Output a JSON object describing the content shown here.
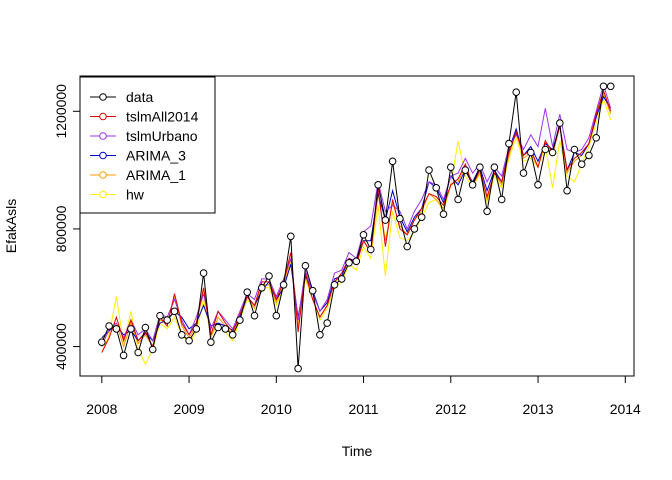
{
  "chart_data": {
    "type": "line",
    "title": "",
    "xlabel": "Time",
    "ylabel": "EfakAsls",
    "xlim": [
      2007.75,
      2014.1
    ],
    "ylim": [
      300000,
      1320000
    ],
    "x_ticks": [
      2008,
      2009,
      2010,
      2011,
      2012,
      2013,
      2014
    ],
    "x_tick_labels": [
      "2008",
      "2009",
      "2010",
      "2011",
      "2012",
      "2013",
      "2014"
    ],
    "y_ticks": [
      400000,
      800000,
      1200000
    ],
    "y_tick_labels": [
      "400000",
      "800000",
      "1200000"
    ],
    "grid": false,
    "legend_position": "top-left",
    "x_start": 2008,
    "x_step": 0.083333,
    "series": [
      {
        "name": "data",
        "color": "#000000",
        "marker": "circle",
        "values": [
          415000,
          470000,
          460000,
          370000,
          460000,
          380000,
          465000,
          390000,
          505000,
          490000,
          520000,
          440000,
          420000,
          460000,
          650000,
          415000,
          465000,
          460000,
          440000,
          490000,
          585000,
          505000,
          600000,
          640000,
          505000,
          610000,
          775000,
          325000,
          675000,
          590000,
          440000,
          480000,
          610000,
          630000,
          685000,
          690000,
          780000,
          730000,
          950000,
          830000,
          1030000,
          835000,
          740000,
          800000,
          840000,
          1000000,
          940000,
          850000,
          1010000,
          900000,
          1000000,
          950000,
          1010000,
          860000,
          1010000,
          900000,
          1090000,
          1265000,
          990000,
          1060000,
          950000,
          1070000,
          1060000,
          1160000,
          930000,
          1070000,
          1020000,
          1050000,
          1110000,
          1285000,
          1285000
        ]
      },
      {
        "name": "tslmAll2014",
        "color": "#dd0000",
        "marker": "none",
        "values": [
          380000,
          430000,
          500000,
          420000,
          490000,
          420000,
          450000,
          400000,
          500000,
          470000,
          580000,
          480000,
          440000,
          480000,
          600000,
          440000,
          520000,
          480000,
          450000,
          510000,
          570000,
          540000,
          620000,
          620000,
          560000,
          620000,
          720000,
          450000,
          650000,
          560000,
          500000,
          540000,
          620000,
          650000,
          700000,
          680000,
          760000,
          720000,
          940000,
          740000,
          900000,
          800000,
          780000,
          830000,
          870000,
          920000,
          910000,
          880000,
          950000,
          970000,
          1020000,
          950000,
          1000000,
          910000,
          990000,
          960000,
          1060000,
          1130000,
          1050000,
          1070000,
          1010000,
          1100000,
          1060000,
          1150000,
          1000000,
          1040000,
          1060000,
          1090000,
          1190000,
          1270000,
          1200000
        ]
      },
      {
        "name": "tslmUrbano",
        "color": "#9933ee",
        "marker": "none",
        "values": [
          400000,
          460000,
          480000,
          430000,
          490000,
          440000,
          460000,
          420000,
          510000,
          500000,
          560000,
          490000,
          440000,
          500000,
          580000,
          460000,
          520000,
          490000,
          460000,
          520000,
          580000,
          560000,
          630000,
          630000,
          570000,
          630000,
          700000,
          490000,
          660000,
          580000,
          520000,
          560000,
          650000,
          660000,
          720000,
          700000,
          790000,
          810000,
          960000,
          860000,
          880000,
          860000,
          800000,
          860000,
          900000,
          960000,
          950000,
          900000,
          980000,
          990000,
          1040000,
          990000,
          1020000,
          960000,
          1010000,
          980000,
          1080000,
          1120000,
          1070000,
          1120000,
          1080000,
          1210000,
          1080000,
          1190000,
          1070000,
          1060000,
          1070000,
          1110000,
          1200000,
          1290000,
          1210000
        ]
      },
      {
        "name": "ARIMA_3",
        "color": "#0000cc",
        "marker": "none",
        "values": [
          430000,
          455000,
          470000,
          440000,
          455000,
          420000,
          445000,
          420000,
          480000,
          490000,
          520000,
          500000,
          460000,
          480000,
          540000,
          470000,
          480000,
          470000,
          455000,
          500000,
          570000,
          540000,
          590000,
          620000,
          560000,
          600000,
          680000,
          500000,
          640000,
          590000,
          520000,
          550000,
          630000,
          640000,
          700000,
          690000,
          760000,
          760000,
          920000,
          830000,
          930000,
          840000,
          790000,
          840000,
          870000,
          960000,
          940000,
          890000,
          980000,
          950000,
          1000000,
          960000,
          1010000,
          930000,
          1000000,
          960000,
          1070000,
          1140000,
          1050000,
          1080000,
          1030000,
          1090000,
          1070000,
          1150000,
          1000000,
          1060000,
          1050000,
          1090000,
          1180000,
          1250000,
          1210000
        ]
      },
      {
        "name": "ARIMA_1",
        "color": "#ff9900",
        "marker": "none",
        "values": [
          420000,
          450000,
          480000,
          400000,
          480000,
          410000,
          440000,
          400000,
          490000,
          480000,
          570000,
          470000,
          430000,
          470000,
          600000,
          430000,
          500000,
          470000,
          440000,
          500000,
          570000,
          530000,
          610000,
          610000,
          550000,
          610000,
          700000,
          470000,
          640000,
          560000,
          500000,
          540000,
          620000,
          640000,
          700000,
          680000,
          760000,
          720000,
          920000,
          760000,
          890000,
          810000,
          780000,
          830000,
          860000,
          920000,
          900000,
          870000,
          950000,
          960000,
          1010000,
          950000,
          990000,
          900000,
          990000,
          950000,
          1050000,
          1130000,
          1040000,
          1060000,
          1010000,
          1100000,
          1050000,
          1150000,
          990000,
          1030000,
          1050000,
          1090000,
          1180000,
          1260000,
          1190000
        ]
      },
      {
        "name": "hw",
        "color": "#ffee00",
        "marker": "none",
        "values": [
          380000,
          440000,
          570000,
          410000,
          520000,
          390000,
          340000,
          390000,
          480000,
          460000,
          500000,
          440000,
          410000,
          450000,
          560000,
          440000,
          470000,
          450000,
          420000,
          490000,
          560000,
          530000,
          600000,
          600000,
          540000,
          600000,
          690000,
          460000,
          630000,
          560000,
          490000,
          530000,
          600000,
          620000,
          680000,
          660000,
          740000,
          700000,
          880000,
          640000,
          860000,
          770000,
          760000,
          790000,
          840000,
          890000,
          900000,
          860000,
          950000,
          1100000,
          980000,
          940000,
          990000,
          890000,
          980000,
          940000,
          1040000,
          1110000,
          1030000,
          1040000,
          1010000,
          1080000,
          940000,
          1100000,
          980000,
          960000,
          1020000,
          1080000,
          1160000,
          1240000,
          1170000
        ]
      }
    ]
  }
}
